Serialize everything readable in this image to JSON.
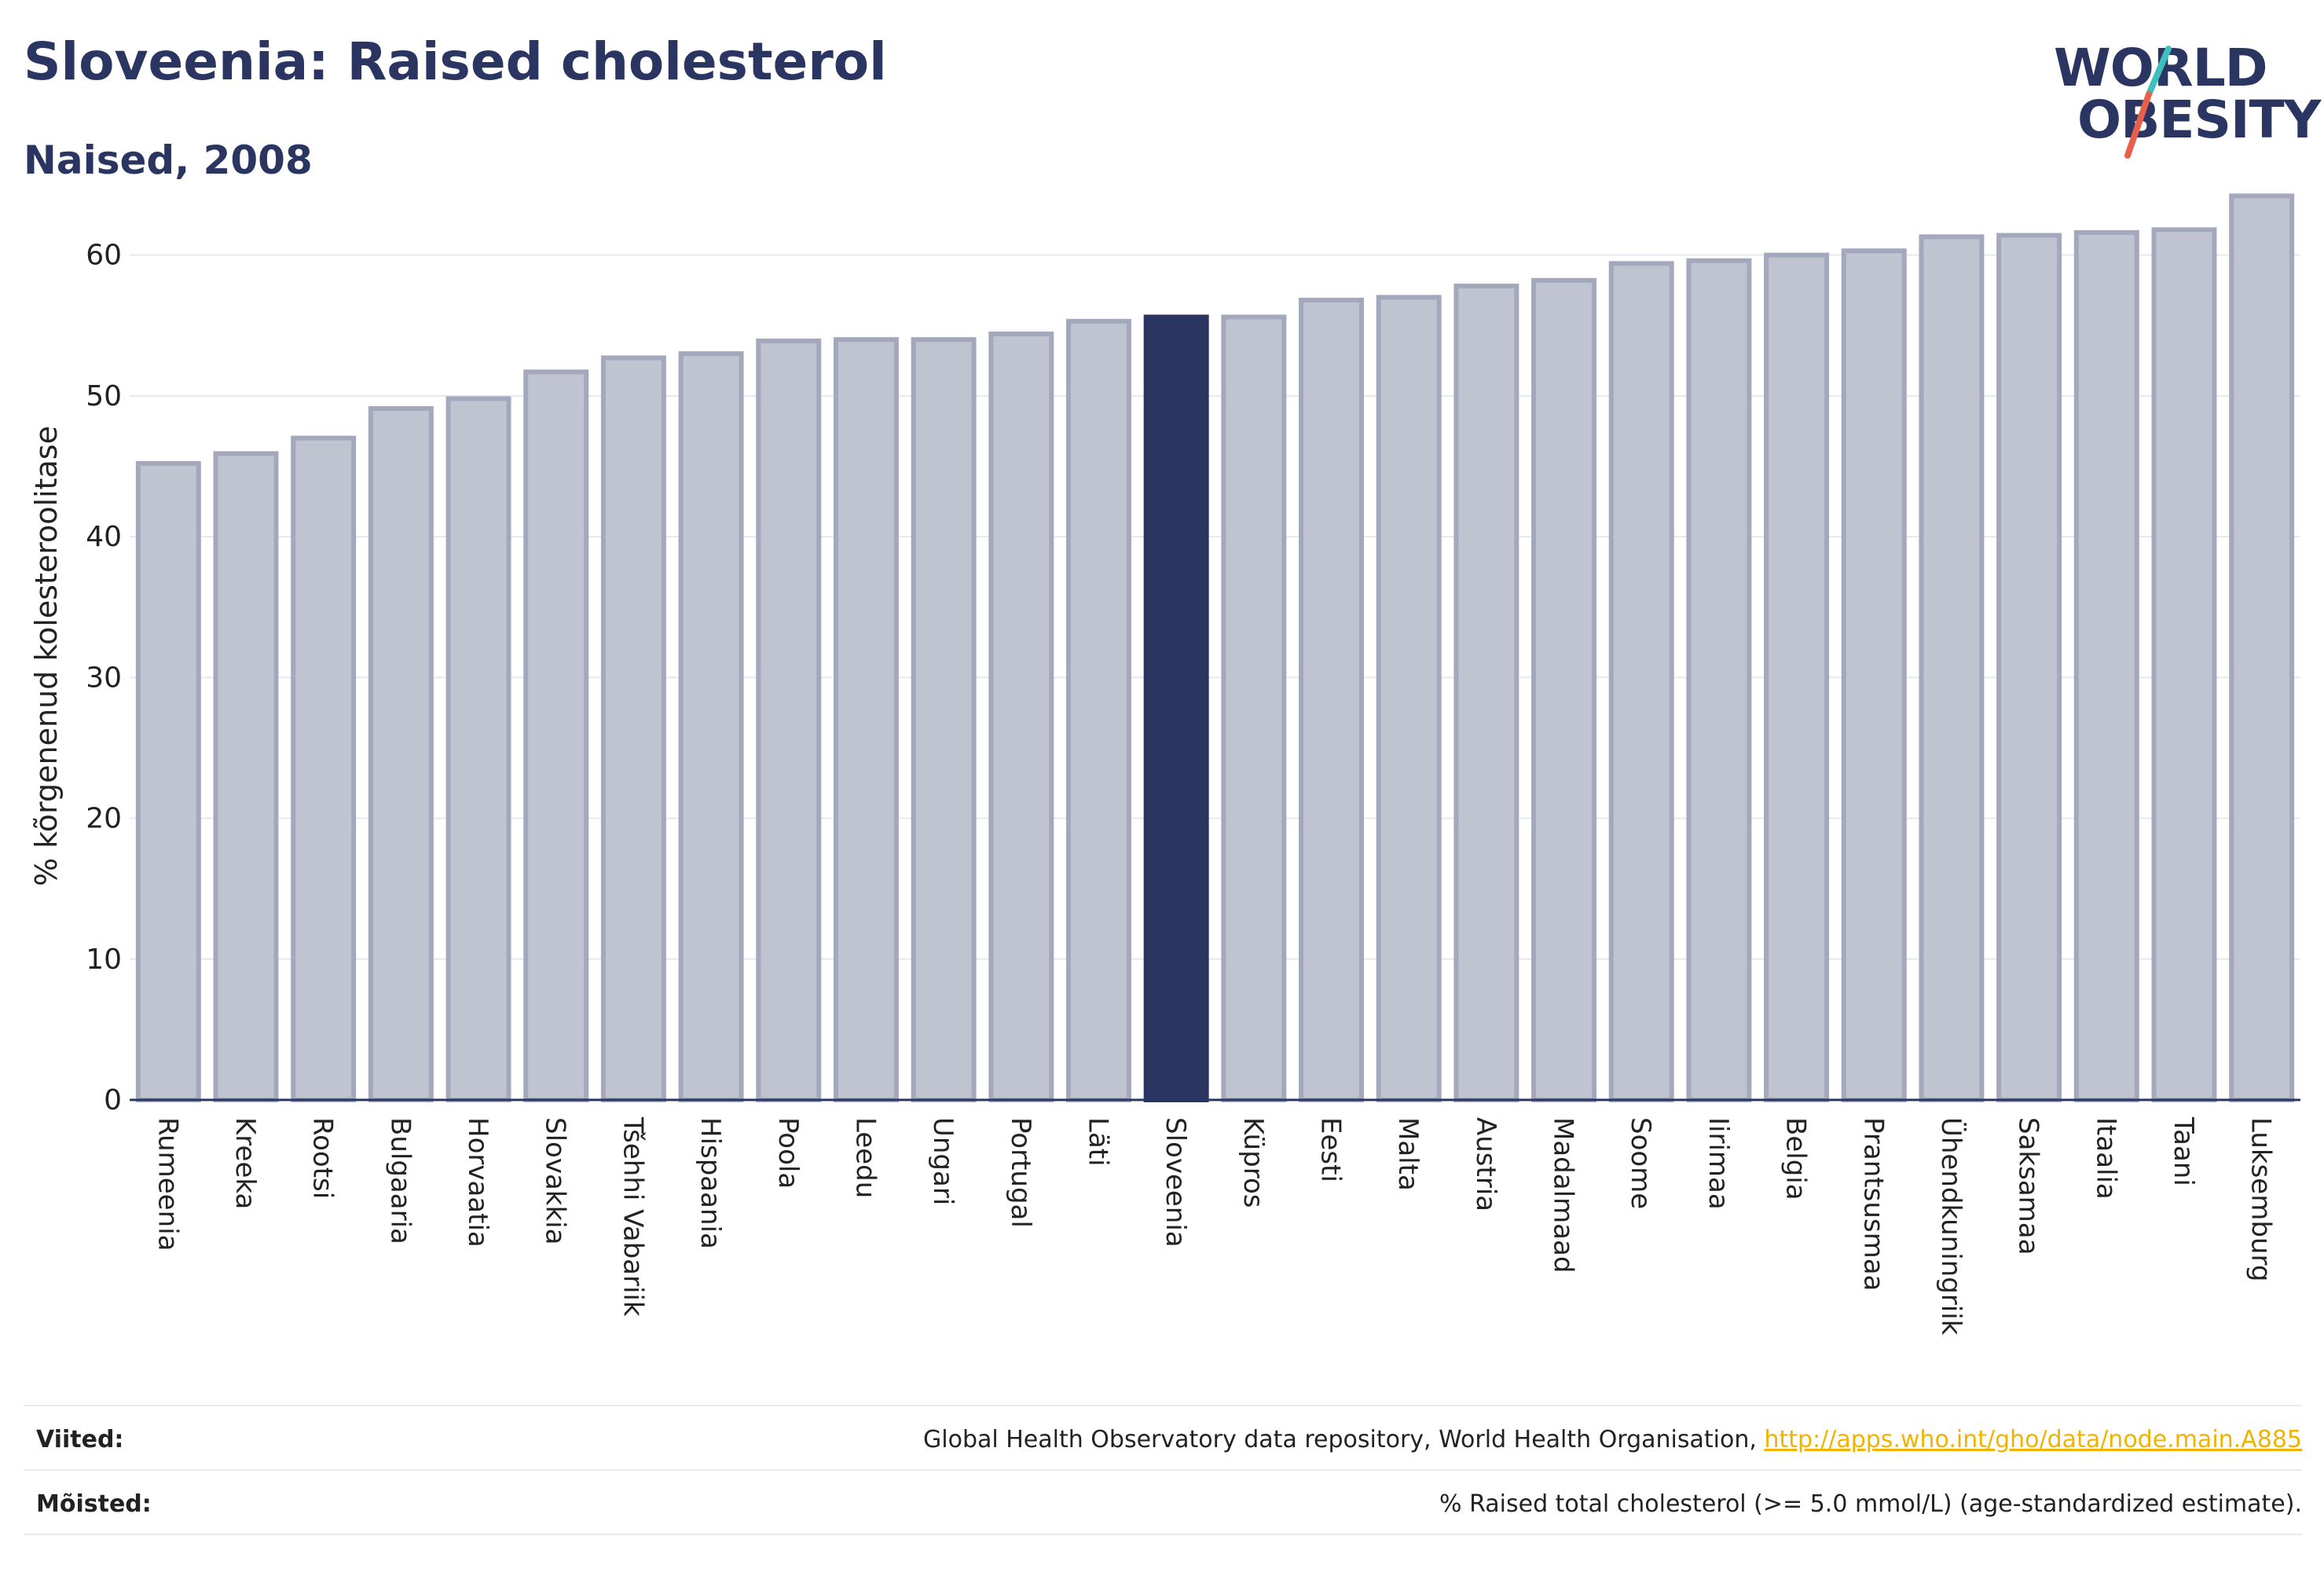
{
  "header": {
    "title": "Sloveenia: Raised cholesterol",
    "subtitle": "Naised, 2008"
  },
  "logo": {
    "line1": "WORLD",
    "line2": "OBESITY",
    "accent_colors": [
      "#3fbfbf",
      "#e8604c"
    ]
  },
  "chart_data": {
    "type": "bar",
    "ylabel": "% kõrgenenud kolesteroolitase",
    "xlabel": "",
    "ylim": [
      0,
      65
    ],
    "yticks": [
      0,
      10,
      20,
      30,
      40,
      50,
      60
    ],
    "grid": true,
    "highlight": "Sloveenia",
    "colors": {
      "bar": "#c0c3d0",
      "bar_edge": "#a4a8bc",
      "highlight": "#2b3561"
    },
    "categories": [
      "Rumeenia",
      "Kreeka",
      "Rootsi",
      "Bulgaaria",
      "Horvaatia",
      "Slovakkia",
      "Tšehhi Vabariik",
      "Hispaania",
      "Poola",
      "Leedu",
      "Ungari",
      "Portugal",
      "Läti",
      "Sloveenia",
      "Küpros",
      "Eesti",
      "Malta",
      "Austria",
      "Madalmaad",
      "Soome",
      "Iirimaa",
      "Belgia",
      "Prantsusmaa",
      "Ühendkuningriik",
      "Saksamaa",
      "Itaalia",
      "Taani",
      "Luksemburg"
    ],
    "values": [
      45.2,
      45.9,
      47.0,
      49.1,
      49.8,
      51.7,
      52.7,
      53.0,
      53.9,
      54.0,
      54.0,
      54.4,
      55.3,
      55.6,
      55.6,
      56.8,
      57.0,
      57.8,
      58.2,
      59.4,
      59.6,
      60.0,
      60.3,
      61.3,
      61.4,
      61.6,
      61.8,
      64.2
    ]
  },
  "footer": {
    "references_label": "Viited:",
    "references_text": "Global Health Observatory data repository, World Health Organisation, ",
    "references_link": "http://apps.who.int/gho/data/node.main.A885",
    "definitions_label": "Mõisted:",
    "definitions_text": "% Raised total cholesterol (>= 5.0 mmol/L) (age-standardized estimate)."
  }
}
